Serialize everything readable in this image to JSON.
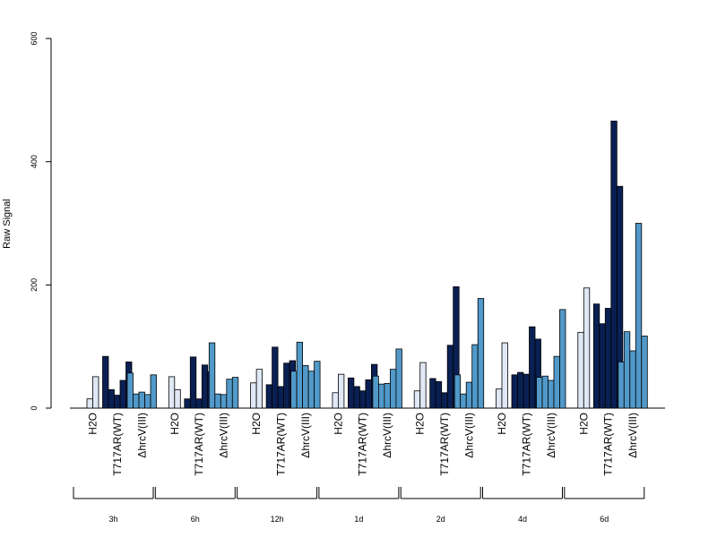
{
  "chart_data": {
    "type": "bar",
    "title": "",
    "xlabel": "",
    "ylabel": "Raw Signal",
    "ylim": [
      0,
      600
    ],
    "yticks": [
      0,
      200,
      400,
      600
    ],
    "grid": false,
    "group_labels": [
      "H2O",
      "T717AR(WT)",
      "ΔhrcV(III)"
    ],
    "colors": {
      "H2O": "#dfe8f4",
      "T717AR(WT)": "#0a2053",
      "ΔhrcV(III)": "#5199c9"
    },
    "timepoints": [
      {
        "label": "3h",
        "H2O": [
          15,
          51
        ],
        "T717AR(WT)": [
          84,
          30,
          21,
          45,
          75
        ],
        "ΔhrcV(III)": [
          57,
          23,
          26,
          22,
          54
        ]
      },
      {
        "label": "6h",
        "H2O": [
          51,
          30
        ],
        "T717AR(WT)": [
          15,
          83,
          15,
          70,
          59
        ],
        "ΔhrcV(III)": [
          106,
          23,
          22,
          47,
          50
        ]
      },
      {
        "label": "12h",
        "H2O": [
          41,
          63
        ],
        "T717AR(WT)": [
          38,
          99,
          35,
          73,
          77
        ],
        "ΔhrcV(III)": [
          60,
          107,
          69,
          60,
          76
        ]
      },
      {
        "label": "1d",
        "H2O": [
          25,
          55
        ],
        "T717AR(WT)": [
          49,
          35,
          28,
          46,
          71
        ],
        "ΔhrcV(III)": [
          52,
          39,
          40,
          63,
          96
        ]
      },
      {
        "label": "2d",
        "H2O": [
          28,
          74
        ],
        "T717AR(WT)": [
          48,
          43,
          25,
          102,
          197
        ],
        "ΔhrcV(III)": [
          54,
          23,
          42,
          103,
          178
        ]
      },
      {
        "label": "4d",
        "H2O": [
          31,
          106
        ],
        "T717AR(WT)": [
          54,
          58,
          55,
          132,
          112
        ],
        "ΔhrcV(III)": [
          50,
          52,
          45,
          84,
          160
        ]
      },
      {
        "label": "6d",
        "H2O": [
          123,
          195
        ],
        "T717AR(WT)": [
          169,
          137,
          162,
          466,
          360
        ],
        "ΔhrcV(III)": [
          75,
          124,
          93,
          300,
          117
        ]
      }
    ]
  }
}
